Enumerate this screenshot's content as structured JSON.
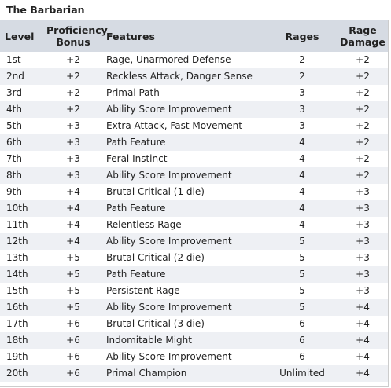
{
  "title": "The Barbarian",
  "headers": {
    "level": "Level",
    "proficiency": "Proficiency Bonus",
    "features": "Features",
    "rages": "Rages",
    "rage_damage": "Rage Damage"
  },
  "rows": [
    {
      "level": "1st",
      "prof": "+2",
      "features": "Rage, Unarmored Defense",
      "rages": "2",
      "dmg": "+2"
    },
    {
      "level": "2nd",
      "prof": "+2",
      "features": "Reckless Attack, Danger Sense",
      "rages": "2",
      "dmg": "+2"
    },
    {
      "level": "3rd",
      "prof": "+2",
      "features": "Primal Path",
      "rages": "3",
      "dmg": "+2"
    },
    {
      "level": "4th",
      "prof": "+2",
      "features": "Ability Score Improvement",
      "rages": "3",
      "dmg": "+2"
    },
    {
      "level": "5th",
      "prof": "+3",
      "features": "Extra Attack, Fast Movement",
      "rages": "3",
      "dmg": "+2"
    },
    {
      "level": "6th",
      "prof": "+3",
      "features": "Path Feature",
      "rages": "4",
      "dmg": "+2"
    },
    {
      "level": "7th",
      "prof": "+3",
      "features": "Feral Instinct",
      "rages": "4",
      "dmg": "+2"
    },
    {
      "level": "8th",
      "prof": "+3",
      "features": "Ability Score Improvement",
      "rages": "4",
      "dmg": "+2"
    },
    {
      "level": "9th",
      "prof": "+4",
      "features": "Brutal Critical (1 die)",
      "rages": "4",
      "dmg": "+3"
    },
    {
      "level": "10th",
      "prof": "+4",
      "features": "Path Feature",
      "rages": "4",
      "dmg": "+3"
    },
    {
      "level": "11th",
      "prof": "+4",
      "features": "Relentless Rage",
      "rages": "4",
      "dmg": "+3"
    },
    {
      "level": "12th",
      "prof": "+4",
      "features": "Ability Score Improvement",
      "rages": "5",
      "dmg": "+3"
    },
    {
      "level": "13th",
      "prof": "+5",
      "features": "Brutal Critical (2 die)",
      "rages": "5",
      "dmg": "+3"
    },
    {
      "level": "14th",
      "prof": "+5",
      "features": "Path Feature",
      "rages": "5",
      "dmg": "+3"
    },
    {
      "level": "15th",
      "prof": "+5",
      "features": "Persistent Rage",
      "rages": "5",
      "dmg": "+3"
    },
    {
      "level": "16th",
      "prof": "+5",
      "features": "Ability Score Improvement",
      "rages": "5",
      "dmg": "+4"
    },
    {
      "level": "17th",
      "prof": "+6",
      "features": "Brutal Critical (3 die)",
      "rages": "6",
      "dmg": "+4"
    },
    {
      "level": "18th",
      "prof": "+6",
      "features": "Indomitable Might",
      "rages": "6",
      "dmg": "+4"
    },
    {
      "level": "19th",
      "prof": "+6",
      "features": "Ability Score Improvement",
      "rages": "6",
      "dmg": "+4"
    },
    {
      "level": "20th",
      "prof": "+6",
      "features": "Primal Champion",
      "rages": "Unlimited",
      "dmg": "+4"
    }
  ],
  "colors": {
    "header_bg": "#d6dbe3",
    "row_alt_bg": "#eef0f4",
    "text": "#222222"
  }
}
